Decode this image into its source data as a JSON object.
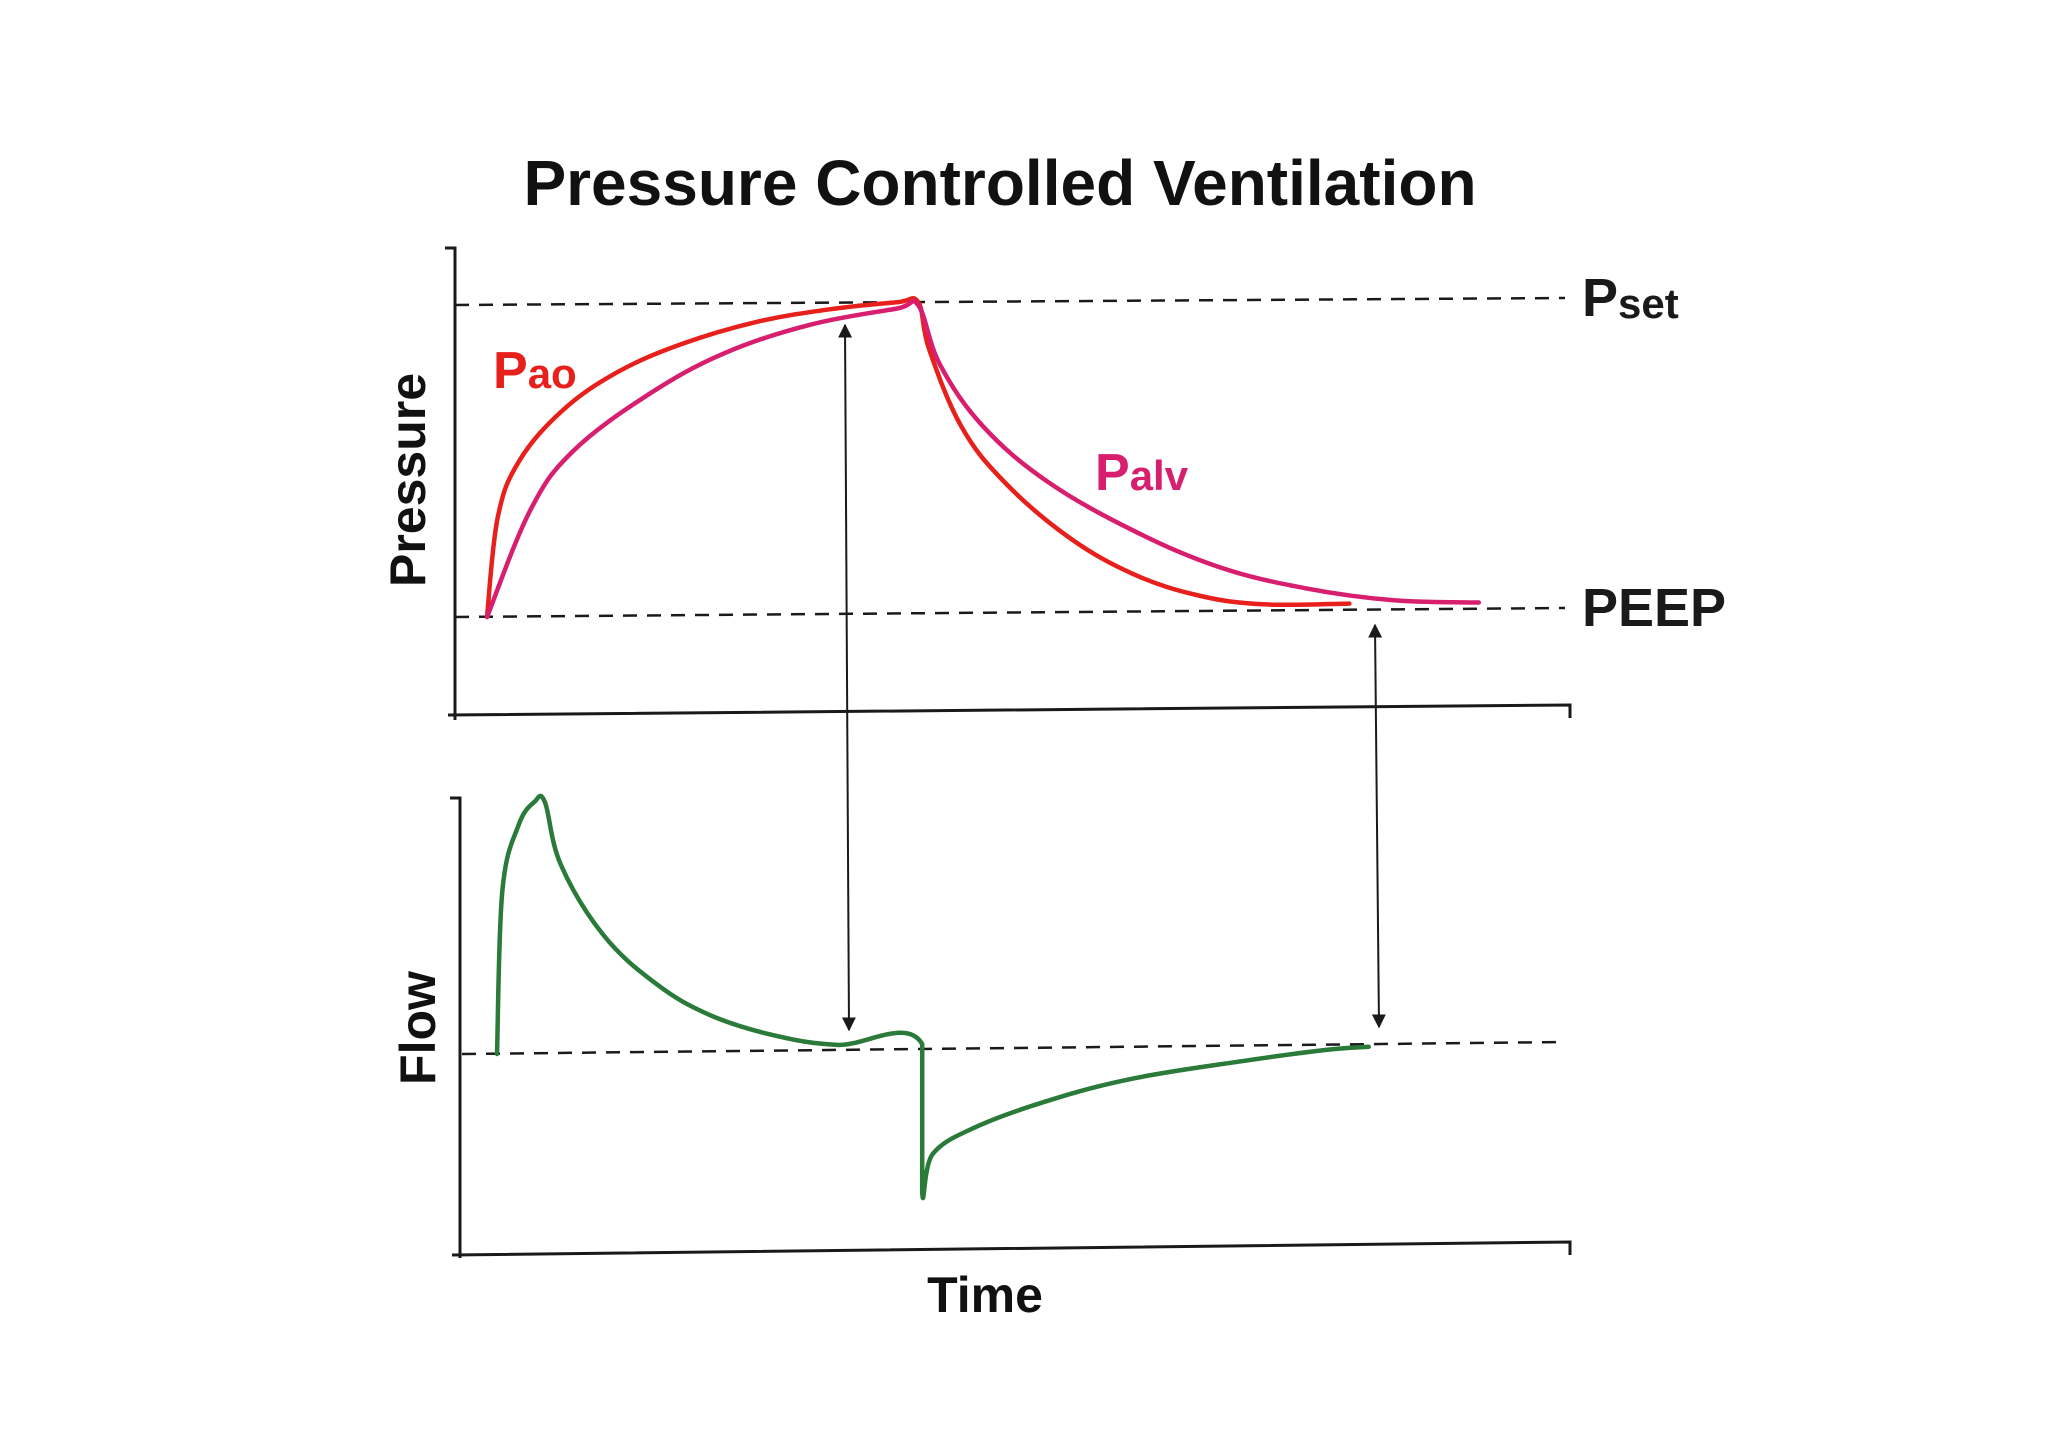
{
  "chart_data": {
    "type": "line",
    "title": "Pressure Controlled Ventilation",
    "xlabel": "Time",
    "panels": [
      {
        "id": "pressure",
        "ylabel": "Pressure",
        "reference_lines": [
          {
            "key": "pset",
            "label_main": "P",
            "label_sub": "set",
            "y": 1.0
          },
          {
            "key": "peep",
            "label_main": "PEEP",
            "label_sub": "",
            "y": 0.0
          }
        ],
        "series": [
          {
            "name": "Pao",
            "label_main": "P",
            "label_sub": "ao",
            "color": "#e8201c",
            "points": [
              [
                0.0,
                0.0
              ],
              [
                0.01,
                0.32
              ],
              [
                0.03,
                0.5
              ],
              [
                0.07,
                0.66
              ],
              [
                0.12,
                0.78
              ],
              [
                0.18,
                0.87
              ],
              [
                0.25,
                0.94
              ],
              [
                0.32,
                0.98
              ],
              [
                0.38,
                1.0
              ],
              [
                0.4,
                1.0
              ],
              [
                0.41,
                0.85
              ],
              [
                0.44,
                0.6
              ],
              [
                0.48,
                0.42
              ],
              [
                0.54,
                0.24
              ],
              [
                0.6,
                0.12
              ],
              [
                0.66,
                0.05
              ],
              [
                0.72,
                0.02
              ],
              [
                0.8,
                0.02
              ]
            ]
          },
          {
            "name": "Palv",
            "label_main": "P",
            "label_sub": "alv",
            "color": "#d81e6e",
            "points": [
              [
                0.0,
                0.0
              ],
              [
                0.04,
                0.34
              ],
              [
                0.08,
                0.53
              ],
              [
                0.15,
                0.71
              ],
              [
                0.22,
                0.84
              ],
              [
                0.3,
                0.93
              ],
              [
                0.38,
                0.98
              ],
              [
                0.4,
                0.99
              ],
              [
                0.42,
                0.8
              ],
              [
                0.46,
                0.6
              ],
              [
                0.52,
                0.42
              ],
              [
                0.6,
                0.26
              ],
              [
                0.68,
                0.14
              ],
              [
                0.76,
                0.07
              ],
              [
                0.84,
                0.03
              ],
              [
                0.92,
                0.02
              ]
            ]
          }
        ]
      },
      {
        "id": "flow",
        "ylabel": "Flow",
        "reference_lines": [
          {
            "key": "zero",
            "label_main": "",
            "label_sub": "",
            "y": 0.0
          }
        ],
        "series": [
          {
            "name": "Flow",
            "label_main": "",
            "label_sub": "",
            "color": "#2a7a3a",
            "points": [
              [
                0.0,
                0.0
              ],
              [
                0.005,
                0.62
              ],
              [
                0.02,
                0.87
              ],
              [
                0.035,
                0.96
              ],
              [
                0.045,
                0.96
              ],
              [
                0.06,
                0.72
              ],
              [
                0.1,
                0.45
              ],
              [
                0.15,
                0.26
              ],
              [
                0.2,
                0.14
              ],
              [
                0.26,
                0.06
              ],
              [
                0.32,
                0.02
              ],
              [
                0.4,
                0.02
              ],
              [
                0.4,
                -0.55
              ],
              [
                0.41,
                -0.4
              ],
              [
                0.45,
                -0.3
              ],
              [
                0.52,
                -0.2
              ],
              [
                0.6,
                -0.12
              ],
              [
                0.7,
                -0.06
              ],
              [
                0.78,
                -0.02
              ],
              [
                0.82,
                -0.01
              ]
            ]
          }
        ]
      }
    ],
    "markers": [
      {
        "name": "end-inspiration",
        "x": 0.36
      },
      {
        "name": "end-expiration",
        "x": 0.82
      }
    ]
  }
}
